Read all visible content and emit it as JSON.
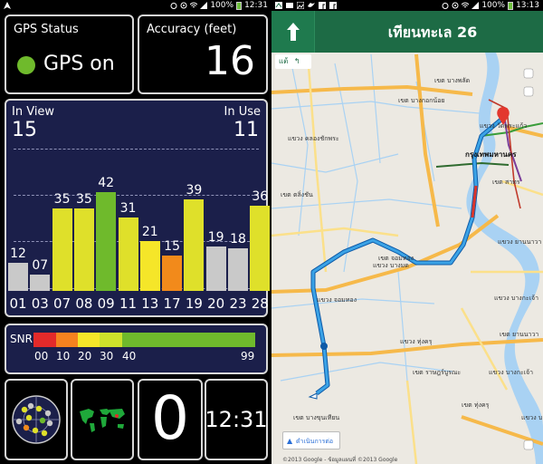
{
  "left_status": {
    "battery": "100%",
    "time": "12:31"
  },
  "right_status": {
    "battery": "100%",
    "time": "13:13"
  },
  "gps_status": {
    "label": "GPS Status",
    "value": "GPS on",
    "indicator_color": "#6fba2c"
  },
  "accuracy": {
    "label": "Accuracy (feet)",
    "value": "16"
  },
  "satellites": {
    "in_view_label": "In View",
    "in_view": "15",
    "in_use_label": "In Use",
    "in_use": "11"
  },
  "chart_data": {
    "type": "bar",
    "title": "",
    "xlabel": "",
    "ylabel": "",
    "ylim": [
      0,
      50
    ],
    "categories": [
      "01",
      "03",
      "07",
      "08",
      "09",
      "11",
      "13",
      "17",
      "19",
      "20",
      "23",
      "28"
    ],
    "values": [
      12,
      7,
      35,
      35,
      42,
      31,
      21,
      15,
      39,
      19,
      18,
      36
    ],
    "value_labels": [
      "12",
      "07",
      "35",
      "35",
      "42",
      "31",
      "21",
      "15",
      "39",
      "19",
      "18",
      "36"
    ],
    "colors": [
      "#c9c9c9",
      "#c9c9c9",
      "#dfe02a",
      "#dfe02a",
      "#6fba2c",
      "#dfe02a",
      "#f5e629",
      "#f28a1b",
      "#dfe02a",
      "#c9c9c9",
      "#c9c9c9",
      "#dfe02a"
    ]
  },
  "snr": {
    "label": "SNR",
    "ticks": [
      "00",
      "10",
      "20",
      "30",
      "40",
      "99"
    ],
    "colors": [
      "#e32a2a",
      "#f5821f",
      "#f5e629",
      "#cde22b",
      "#6fba2c"
    ]
  },
  "bottom_tiles": {
    "count": "0",
    "clock": "12:31"
  },
  "navigation": {
    "title": "เทียนทะเล 26",
    "lane_hint": "แต้",
    "city": "กรุงเทพมหานคร",
    "continue_label": "ดำเนินการต่อ",
    "copyright": "©2013 Google - ข้อมูลแผนที่ ©2013 Google",
    "route_color": "#3ba3e6",
    "map_labels": [
      "เขต บางกอกน้อย",
      "แขวง คลองชักพระ",
      "เขต ตลิ่งชัน",
      "เขต จอมทอง",
      "แขวง บางมด",
      "เขต บางขุนเทียน",
      "เขต สาทร",
      "แขวง ยานนาวา",
      "แขวง ทุ่งครุ",
      "เขต ราษฎร์บูรณะ",
      "แขวง บางกะเจ้า",
      "แขวง วัดพระแก้ว",
      "เขต ยานนาวา",
      "แขวง บางกะเจ้า",
      "เขต ทุ่งครุ",
      "แขวง จอมทอง",
      "เขต บางพลัด",
      "แขวง บางนา"
    ]
  }
}
